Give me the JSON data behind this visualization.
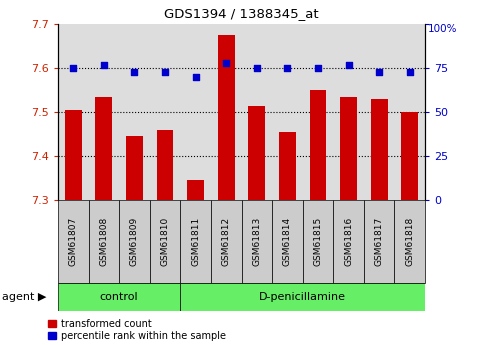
{
  "title": "GDS1394 / 1388345_at",
  "samples": [
    "GSM61807",
    "GSM61808",
    "GSM61809",
    "GSM61810",
    "GSM61811",
    "GSM61812",
    "GSM61813",
    "GSM61814",
    "GSM61815",
    "GSM61816",
    "GSM61817",
    "GSM61818"
  ],
  "red_values": [
    7.505,
    7.535,
    7.445,
    7.46,
    7.345,
    7.675,
    7.515,
    7.455,
    7.55,
    7.535,
    7.53,
    7.5
  ],
  "blue_values_pct": [
    75,
    77,
    73,
    73,
    70,
    78,
    75,
    75,
    75,
    77,
    73,
    73
  ],
  "ylim_left": [
    7.3,
    7.7
  ],
  "ylim_right": [
    0,
    100
  ],
  "yticks_left": [
    7.3,
    7.4,
    7.5,
    7.6,
    7.7
  ],
  "yticks_right": [
    0,
    25,
    50,
    75,
    100
  ],
  "bar_color": "#cc0000",
  "dot_color": "#0000cc",
  "bar_width": 0.55,
  "plot_bg_color": "#dddddd",
  "tick_color_left": "#cc2200",
  "tick_color_right": "#0000cc",
  "green_color": "#66ee66",
  "sample_box_color": "#cccccc",
  "dotted_line_color": "#000000",
  "ctrl_count": 4,
  "total_count": 12
}
